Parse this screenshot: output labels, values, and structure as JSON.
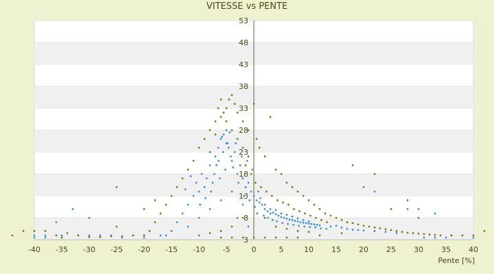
{
  "chart_data": {
    "type": "scatter",
    "title": "VITESSE vs PENTE",
    "xlabel": "Pente [%]",
    "ylabel": "",
    "xlim": [
      -40,
      40
    ],
    "ylim": [
      3,
      53
    ],
    "xticks": [
      "-40",
      "-35",
      "-30",
      "-25",
      "-20",
      "-15",
      "-10",
      "-5",
      "0",
      "5",
      "10",
      "15",
      "20",
      "25",
      "30",
      "35",
      "40"
    ],
    "yticks": [
      "53",
      "48",
      "43",
      "38",
      "33",
      "28",
      "23",
      "18",
      "13",
      "8",
      "3"
    ],
    "grid": "horizontal alternating bands",
    "legend": "none",
    "colors": {
      "series_a": "#3d8fd6",
      "series_b": "#7a7a10",
      "background": "#eef2d0",
      "band": "#f0f0f0",
      "axis": "#556b2f"
    },
    "series": [
      {
        "color": "#3d8fd6",
        "points": [
          [
            -5.5,
            27
          ],
          [
            -6,
            26
          ],
          [
            -4.8,
            25
          ],
          [
            -5,
            28
          ],
          [
            -6.5,
            24
          ],
          [
            -7,
            22
          ],
          [
            -3.5,
            23
          ],
          [
            -4,
            21
          ],
          [
            -8,
            20
          ],
          [
            -5.2,
            19
          ],
          [
            -6.2,
            17
          ],
          [
            -7.5,
            16
          ],
          [
            -9,
            15
          ],
          [
            -10,
            14
          ],
          [
            -3,
            18
          ],
          [
            -2.5,
            20
          ],
          [
            -2,
            17
          ],
          [
            -1.5,
            15
          ],
          [
            -1,
            16
          ],
          [
            -0.5,
            14
          ],
          [
            0,
            13
          ],
          [
            0.5,
            12
          ],
          [
            1,
            11.5
          ],
          [
            1.5,
            11
          ],
          [
            2,
            10
          ],
          [
            2.5,
            9.5
          ],
          [
            3,
            9
          ],
          [
            3.5,
            9.2
          ],
          [
            4,
            8.8
          ],
          [
            4.5,
            8.5
          ],
          [
            5,
            8.2
          ],
          [
            5.5,
            8
          ],
          [
            6,
            7.8
          ],
          [
            6.5,
            7.6
          ],
          [
            7,
            7.5
          ],
          [
            7.5,
            7.3
          ],
          [
            8,
            7.2
          ],
          [
            8.5,
            7
          ],
          [
            9,
            6.9
          ],
          [
            9.5,
            6.8
          ],
          [
            10,
            6.7
          ],
          [
            10.5,
            6.6
          ],
          [
            11,
            6.5
          ],
          [
            11.5,
            6.4
          ],
          [
            12,
            6.3
          ],
          [
            2,
            11
          ],
          [
            3,
            10
          ],
          [
            4,
            9.8
          ],
          [
            5,
            9
          ],
          [
            6,
            8.7
          ],
          [
            7,
            8.3
          ],
          [
            8,
            7.9
          ],
          [
            9,
            7.5
          ],
          [
            10,
            7.2
          ],
          [
            1.2,
            12.5
          ],
          [
            0.8,
            14
          ],
          [
            -0.3,
            19
          ],
          [
            -1.2,
            21
          ],
          [
            -2.2,
            22
          ],
          [
            -3.3,
            25
          ],
          [
            -4.4,
            27.5
          ],
          [
            -5.6,
            23
          ],
          [
            -6.8,
            20
          ],
          [
            -7.2,
            18
          ],
          [
            -8.6,
            17
          ],
          [
            -9.5,
            18
          ],
          [
            -11,
            13
          ],
          [
            -12,
            11
          ],
          [
            -13,
            9
          ],
          [
            -14,
            7
          ],
          [
            -15,
            5
          ],
          [
            -16,
            4
          ],
          [
            -10,
            8
          ],
          [
            -12,
            6
          ],
          [
            -8,
            10
          ],
          [
            -6,
            12
          ],
          [
            -4,
            14
          ],
          [
            -2,
            11
          ],
          [
            -3,
            8
          ],
          [
            -1,
            6
          ],
          [
            -25,
            15
          ],
          [
            -33,
            10
          ],
          [
            -38,
            4
          ],
          [
            -40,
            4
          ],
          [
            -20,
            4
          ],
          [
            -22,
            4
          ],
          [
            -17,
            4
          ],
          [
            -30,
            4
          ],
          [
            -35,
            4
          ],
          [
            -28,
            4
          ],
          [
            14,
            6
          ],
          [
            15,
            6.2
          ],
          [
            16,
            5.8
          ],
          [
            17,
            5.5
          ],
          [
            18,
            5.3
          ],
          [
            19,
            5.2
          ],
          [
            20,
            5.1
          ],
          [
            22,
            5
          ],
          [
            24,
            4.8
          ],
          [
            26,
            4.5
          ],
          [
            20,
            15
          ],
          [
            22,
            14
          ],
          [
            28,
            10
          ],
          [
            30,
            10
          ],
          [
            33,
            9
          ],
          [
            36,
            4
          ],
          [
            38,
            4
          ],
          [
            -26,
            4
          ],
          [
            -36,
            7
          ],
          [
            -32,
            4
          ],
          [
            -5,
            25
          ],
          [
            -4.6,
            24
          ],
          [
            -5.8,
            26.5
          ],
          [
            -4.2,
            22
          ],
          [
            -6.4,
            21
          ],
          [
            -3.8,
            19.5
          ],
          [
            -7.8,
            14
          ],
          [
            -8.8,
            12.5
          ],
          [
            -9.8,
            11
          ],
          [
            -10.5,
            16
          ],
          [
            -11.5,
            17.5
          ],
          [
            -12.5,
            14.5
          ],
          [
            -2.8,
            16
          ],
          [
            -1.8,
            13
          ],
          [
            -0.8,
            12
          ],
          [
            0.2,
            10.5
          ],
          [
            0.6,
            9
          ],
          [
            1.8,
            8.5
          ],
          [
            2.6,
            8
          ],
          [
            3.4,
            7.5
          ],
          [
            4.2,
            7.2
          ],
          [
            5.2,
            6.8
          ],
          [
            6.2,
            6.6
          ],
          [
            7.2,
            6.4
          ],
          [
            8.2,
            6.2
          ],
          [
            9.2,
            6
          ],
          [
            10.2,
            5.9
          ],
          [
            11.2,
            5.8
          ],
          [
            12.2,
            5.6
          ],
          [
            13.2,
            5.5
          ],
          [
            -40,
            3.5
          ],
          [
            -38,
            3.5
          ],
          [
            -20,
            3.5
          ],
          [
            -24,
            3.5
          ],
          [
            35,
            3.5
          ],
          [
            40,
            3.5
          ],
          [
            33,
            3.5
          ],
          [
            31,
            3.5
          ]
        ]
      },
      {
        "color": "#7a7a10",
        "points": [
          [
            -5,
            33
          ],
          [
            -4,
            36
          ],
          [
            -6,
            35
          ],
          [
            -3,
            32
          ],
          [
            -7,
            30
          ],
          [
            -8,
            28
          ],
          [
            -9,
            26
          ],
          [
            -10,
            24
          ],
          [
            -11,
            21
          ],
          [
            -12,
            19
          ],
          [
            -13,
            17
          ],
          [
            -14,
            15
          ],
          [
            -15,
            13
          ],
          [
            -16,
            11
          ],
          [
            -17,
            9
          ],
          [
            -18,
            7
          ],
          [
            -19,
            5
          ],
          [
            -20,
            4
          ],
          [
            -2,
            30
          ],
          [
            -1,
            28
          ],
          [
            0,
            34
          ],
          [
            0.5,
            26
          ],
          [
            1,
            24
          ],
          [
            2,
            22
          ],
          [
            3,
            31
          ],
          [
            4,
            19
          ],
          [
            5,
            18
          ],
          [
            6,
            16
          ],
          [
            7,
            15
          ],
          [
            8,
            14
          ],
          [
            9,
            13
          ],
          [
            10,
            12
          ],
          [
            11,
            11
          ],
          [
            12,
            10
          ],
          [
            13,
            9
          ],
          [
            14,
            8.5
          ],
          [
            15,
            8
          ],
          [
            16,
            7.5
          ],
          [
            17,
            7
          ],
          [
            18,
            6.8
          ],
          [
            19,
            6.5
          ],
          [
            20,
            6.2
          ],
          [
            21,
            6
          ],
          [
            22,
            5.8
          ],
          [
            23,
            5.6
          ],
          [
            24,
            5.4
          ],
          [
            25,
            5.2
          ],
          [
            26,
            5
          ],
          [
            27,
            4.8
          ],
          [
            28,
            4.6
          ],
          [
            29,
            4.5
          ],
          [
            30,
            4.4
          ],
          [
            31,
            4.3
          ],
          [
            32,
            4.2
          ],
          [
            33,
            4.1
          ],
          [
            34,
            4
          ],
          [
            36,
            4
          ],
          [
            38,
            4
          ],
          [
            40,
            4
          ],
          [
            42,
            5
          ],
          [
            -22,
            4
          ],
          [
            -24,
            3.8
          ],
          [
            -26,
            3.8
          ],
          [
            -28,
            3.6
          ],
          [
            -30,
            3.6
          ],
          [
            -32,
            4
          ],
          [
            -34,
            4.5
          ],
          [
            -36,
            4
          ],
          [
            -38,
            5
          ],
          [
            -40,
            5
          ],
          [
            -42,
            5
          ],
          [
            -44,
            4
          ],
          [
            -3,
            26
          ],
          [
            -2,
            24
          ],
          [
            -1,
            22
          ],
          [
            -4,
            28
          ],
          [
            -5,
            30
          ],
          [
            -6,
            31
          ],
          [
            -7,
            27
          ],
          [
            -8,
            23
          ],
          [
            -3.5,
            34
          ],
          [
            -4.5,
            35
          ],
          [
            -5.5,
            32
          ],
          [
            -6.5,
            33
          ],
          [
            -1.5,
            20
          ],
          [
            -0.5,
            18
          ],
          [
            0.3,
            16
          ],
          [
            1.3,
            15
          ],
          [
            2.3,
            14
          ],
          [
            3.3,
            13
          ],
          [
            4.3,
            12
          ],
          [
            5.3,
            11.5
          ],
          [
            6.3,
            11
          ],
          [
            7.3,
            10
          ],
          [
            8.3,
            9.5
          ],
          [
            9.3,
            9
          ],
          [
            10.3,
            8.5
          ],
          [
            11.3,
            8
          ],
          [
            12.3,
            7.5
          ],
          [
            13.3,
            7
          ],
          [
            2,
            8
          ],
          [
            4,
            6
          ],
          [
            6,
            5.5
          ],
          [
            8,
            5
          ],
          [
            10,
            4.8
          ],
          [
            -2,
            8
          ],
          [
            -4,
            6
          ],
          [
            -6,
            5
          ],
          [
            -8,
            4.5
          ],
          [
            -10,
            4
          ],
          [
            25,
            10
          ],
          [
            30,
            8
          ],
          [
            28,
            12
          ],
          [
            22,
            18
          ],
          [
            18,
            20
          ],
          [
            -18,
            12
          ],
          [
            -20,
            10
          ],
          [
            -25,
            6
          ],
          [
            -30,
            8
          ],
          [
            -35,
            3.5
          ],
          [
            -2,
            3.5
          ],
          [
            0,
            3.5
          ],
          [
            2,
            3.5
          ],
          [
            4,
            3.5
          ],
          [
            -4,
            3.5
          ],
          [
            -6,
            3.5
          ],
          [
            6,
            3.5
          ],
          [
            8,
            3.5
          ],
          [
            12,
            4
          ],
          [
            16,
            4.5
          ]
        ]
      }
    ]
  }
}
